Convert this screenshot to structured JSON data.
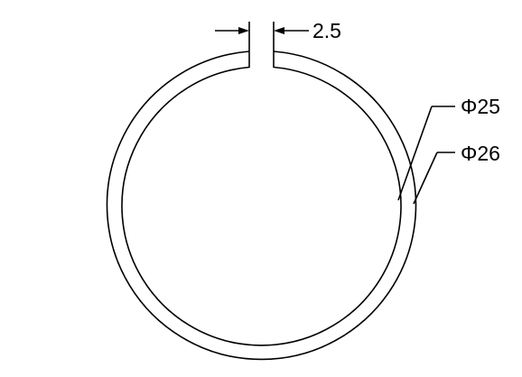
{
  "drawing": {
    "gap_dimension": "2.5",
    "inner_diameter_label": "Φ25",
    "outer_diameter_label": "Φ26",
    "line_color": "#000000",
    "background_color": "#ffffff"
  }
}
